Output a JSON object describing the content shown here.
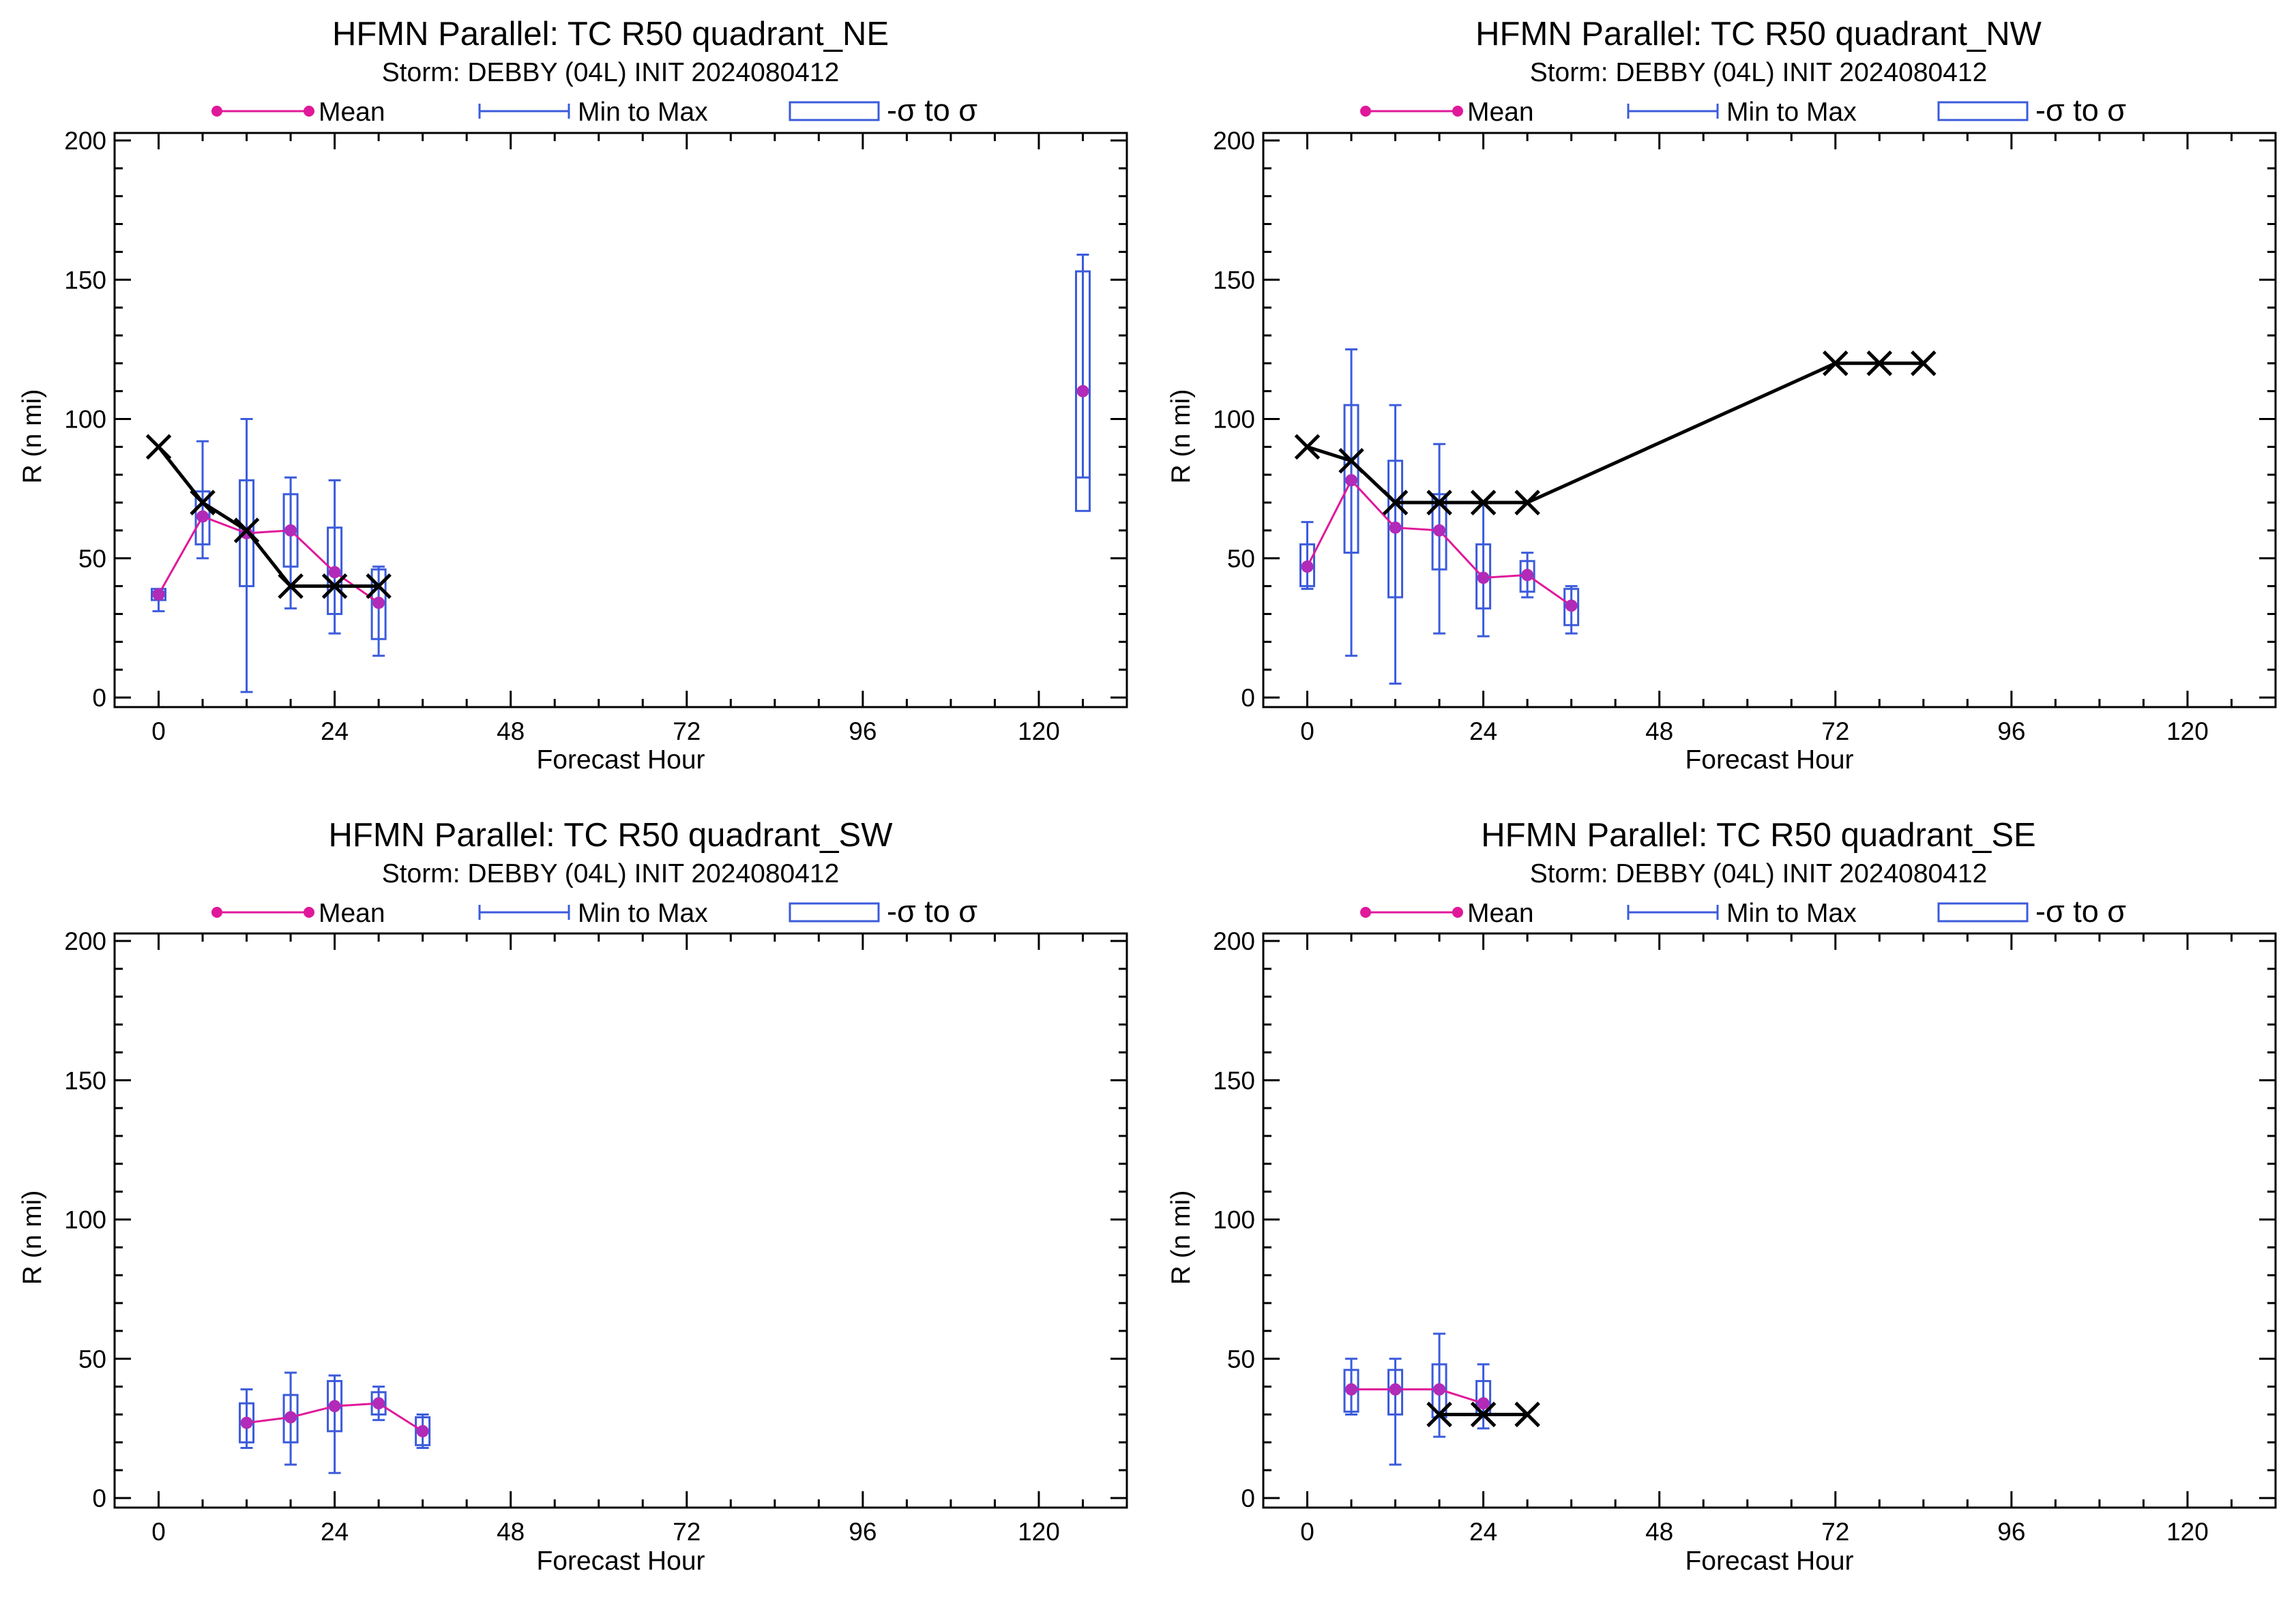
{
  "legend": {
    "mean_label": "Mean",
    "minmax_label": "Min to Max",
    "sigma_label": "-σ to σ"
  },
  "colors": {
    "mean": "#e0189a",
    "mean_marker": "#b12ab8",
    "box": "#3b5bdb",
    "best_track": "#000000",
    "axes": "#000000"
  },
  "chart_data": [
    {
      "type": "box",
      "title": "HFMN Parallel: TC  R50 quadrant_NE",
      "subtitle": "Storm: DEBBY (04L) INIT 2024080412",
      "xlabel": "Forecast Hour",
      "ylabel": "R (n mi)",
      "xlim": [
        -6,
        132
      ],
      "ylim": [
        0,
        200
      ],
      "xticks": [
        "0",
        "24",
        "48",
        "72",
        "96",
        "120"
      ],
      "yticks": [
        "0",
        "50",
        "100",
        "150",
        "200"
      ],
      "grid": false,
      "legend_position": "top",
      "mean": [
        [
          0,
          37
        ],
        [
          6,
          65
        ],
        [
          12,
          59
        ],
        [
          18,
          60
        ],
        [
          24,
          45
        ],
        [
          30,
          34
        ],
        [
          126,
          110
        ]
      ],
      "boxes": [
        {
          "x": 0,
          "min": 31,
          "max": 38,
          "lo": 35,
          "hi": 39
        },
        {
          "x": 6,
          "min": 50,
          "max": 92,
          "lo": 55,
          "hi": 74
        },
        {
          "x": 12,
          "min": 2,
          "max": 100,
          "lo": 40,
          "hi": 78
        },
        {
          "x": 18,
          "min": 32,
          "max": 79,
          "lo": 47,
          "hi": 73
        },
        {
          "x": 24,
          "min": 23,
          "max": 78,
          "lo": 30,
          "hi": 61
        },
        {
          "x": 30,
          "min": 15,
          "max": 47,
          "lo": 21,
          "hi": 46
        },
        {
          "x": 126,
          "min": 79,
          "max": 159,
          "lo": 67,
          "hi": 153
        }
      ],
      "best_track": [
        [
          0,
          90
        ],
        [
          6,
          70
        ],
        [
          12,
          60
        ],
        [
          18,
          40
        ],
        [
          24,
          40
        ],
        [
          30,
          40
        ]
      ]
    },
    {
      "type": "box",
      "title": "HFMN Parallel: TC  R50 quadrant_NW",
      "subtitle": "Storm: DEBBY (04L) INIT 2024080412",
      "xlabel": "Forecast Hour",
      "ylabel": "R (n mi)",
      "xlim": [
        -6,
        132
      ],
      "ylim": [
        0,
        200
      ],
      "xticks": [
        "0",
        "24",
        "48",
        "72",
        "96",
        "120"
      ],
      "yticks": [
        "0",
        "50",
        "100",
        "150",
        "200"
      ],
      "grid": false,
      "legend_position": "top",
      "mean": [
        [
          0,
          47
        ],
        [
          6,
          78
        ],
        [
          12,
          61
        ],
        [
          18,
          60
        ],
        [
          24,
          43
        ],
        [
          30,
          44
        ],
        [
          36,
          33
        ]
      ],
      "boxes": [
        {
          "x": 0,
          "min": 39,
          "max": 63,
          "lo": 40,
          "hi": 55
        },
        {
          "x": 6,
          "min": 15,
          "max": 125,
          "lo": 52,
          "hi": 105
        },
        {
          "x": 12,
          "min": 5,
          "max": 105,
          "lo": 36,
          "hi": 85
        },
        {
          "x": 18,
          "min": 23,
          "max": 91,
          "lo": 46,
          "hi": 73
        },
        {
          "x": 24,
          "min": 22,
          "max": 70,
          "lo": 32,
          "hi": 55
        },
        {
          "x": 30,
          "min": 36,
          "max": 52,
          "lo": 38,
          "hi": 49
        },
        {
          "x": 36,
          "min": 23,
          "max": 40,
          "lo": 26,
          "hi": 39
        }
      ],
      "best_track": [
        [
          0,
          90
        ],
        [
          6,
          85
        ],
        [
          12,
          70
        ],
        [
          18,
          70
        ],
        [
          24,
          70
        ],
        [
          30,
          70
        ],
        [
          72,
          120
        ],
        [
          78,
          120
        ],
        [
          84,
          120
        ]
      ]
    },
    {
      "type": "box",
      "title": "HFMN Parallel: TC  R50 quadrant_SW",
      "subtitle": "Storm: DEBBY (04L) INIT 2024080412",
      "xlabel": "Forecast Hour",
      "ylabel": "R (n mi)",
      "xlim": [
        -6,
        132
      ],
      "ylim": [
        0,
        200
      ],
      "xticks": [
        "0",
        "24",
        "48",
        "72",
        "96",
        "120"
      ],
      "yticks": [
        "0",
        "50",
        "100",
        "150",
        "200"
      ],
      "grid": false,
      "legend_position": "top",
      "mean": [
        [
          12,
          27
        ],
        [
          18,
          29
        ],
        [
          24,
          33
        ],
        [
          30,
          34
        ],
        [
          36,
          24
        ]
      ],
      "boxes": [
        {
          "x": 12,
          "min": 18,
          "max": 39,
          "lo": 20,
          "hi": 34
        },
        {
          "x": 18,
          "min": 12,
          "max": 45,
          "lo": 20,
          "hi": 37
        },
        {
          "x": 24,
          "min": 9,
          "max": 44,
          "lo": 24,
          "hi": 42
        },
        {
          "x": 30,
          "min": 28,
          "max": 40,
          "lo": 30,
          "hi": 38
        },
        {
          "x": 36,
          "min": 18,
          "max": 30,
          "lo": 19,
          "hi": 29
        }
      ],
      "best_track": []
    },
    {
      "type": "box",
      "title": "HFMN Parallel: TC  R50 quadrant_SE",
      "subtitle": "Storm: DEBBY (04L) INIT 2024080412",
      "xlabel": "Forecast Hour",
      "ylabel": "R (n mi)",
      "xlim": [
        -6,
        132
      ],
      "ylim": [
        0,
        200
      ],
      "xticks": [
        "0",
        "24",
        "48",
        "72",
        "96",
        "120"
      ],
      "yticks": [
        "0",
        "50",
        "100",
        "150",
        "200"
      ],
      "grid": false,
      "legend_position": "top",
      "mean": [
        [
          6,
          39
        ],
        [
          12,
          39
        ],
        [
          18,
          39
        ],
        [
          24,
          34
        ]
      ],
      "boxes": [
        {
          "x": 6,
          "min": 30,
          "max": 50,
          "lo": 31,
          "hi": 46
        },
        {
          "x": 12,
          "min": 12,
          "max": 50,
          "lo": 30,
          "hi": 46
        },
        {
          "x": 18,
          "min": 22,
          "max": 59,
          "lo": 29,
          "hi": 48
        },
        {
          "x": 24,
          "min": 25,
          "max": 48,
          "lo": 30,
          "hi": 42
        }
      ],
      "best_track": [
        [
          18,
          30
        ],
        [
          24,
          30
        ],
        [
          30,
          30
        ]
      ]
    }
  ]
}
